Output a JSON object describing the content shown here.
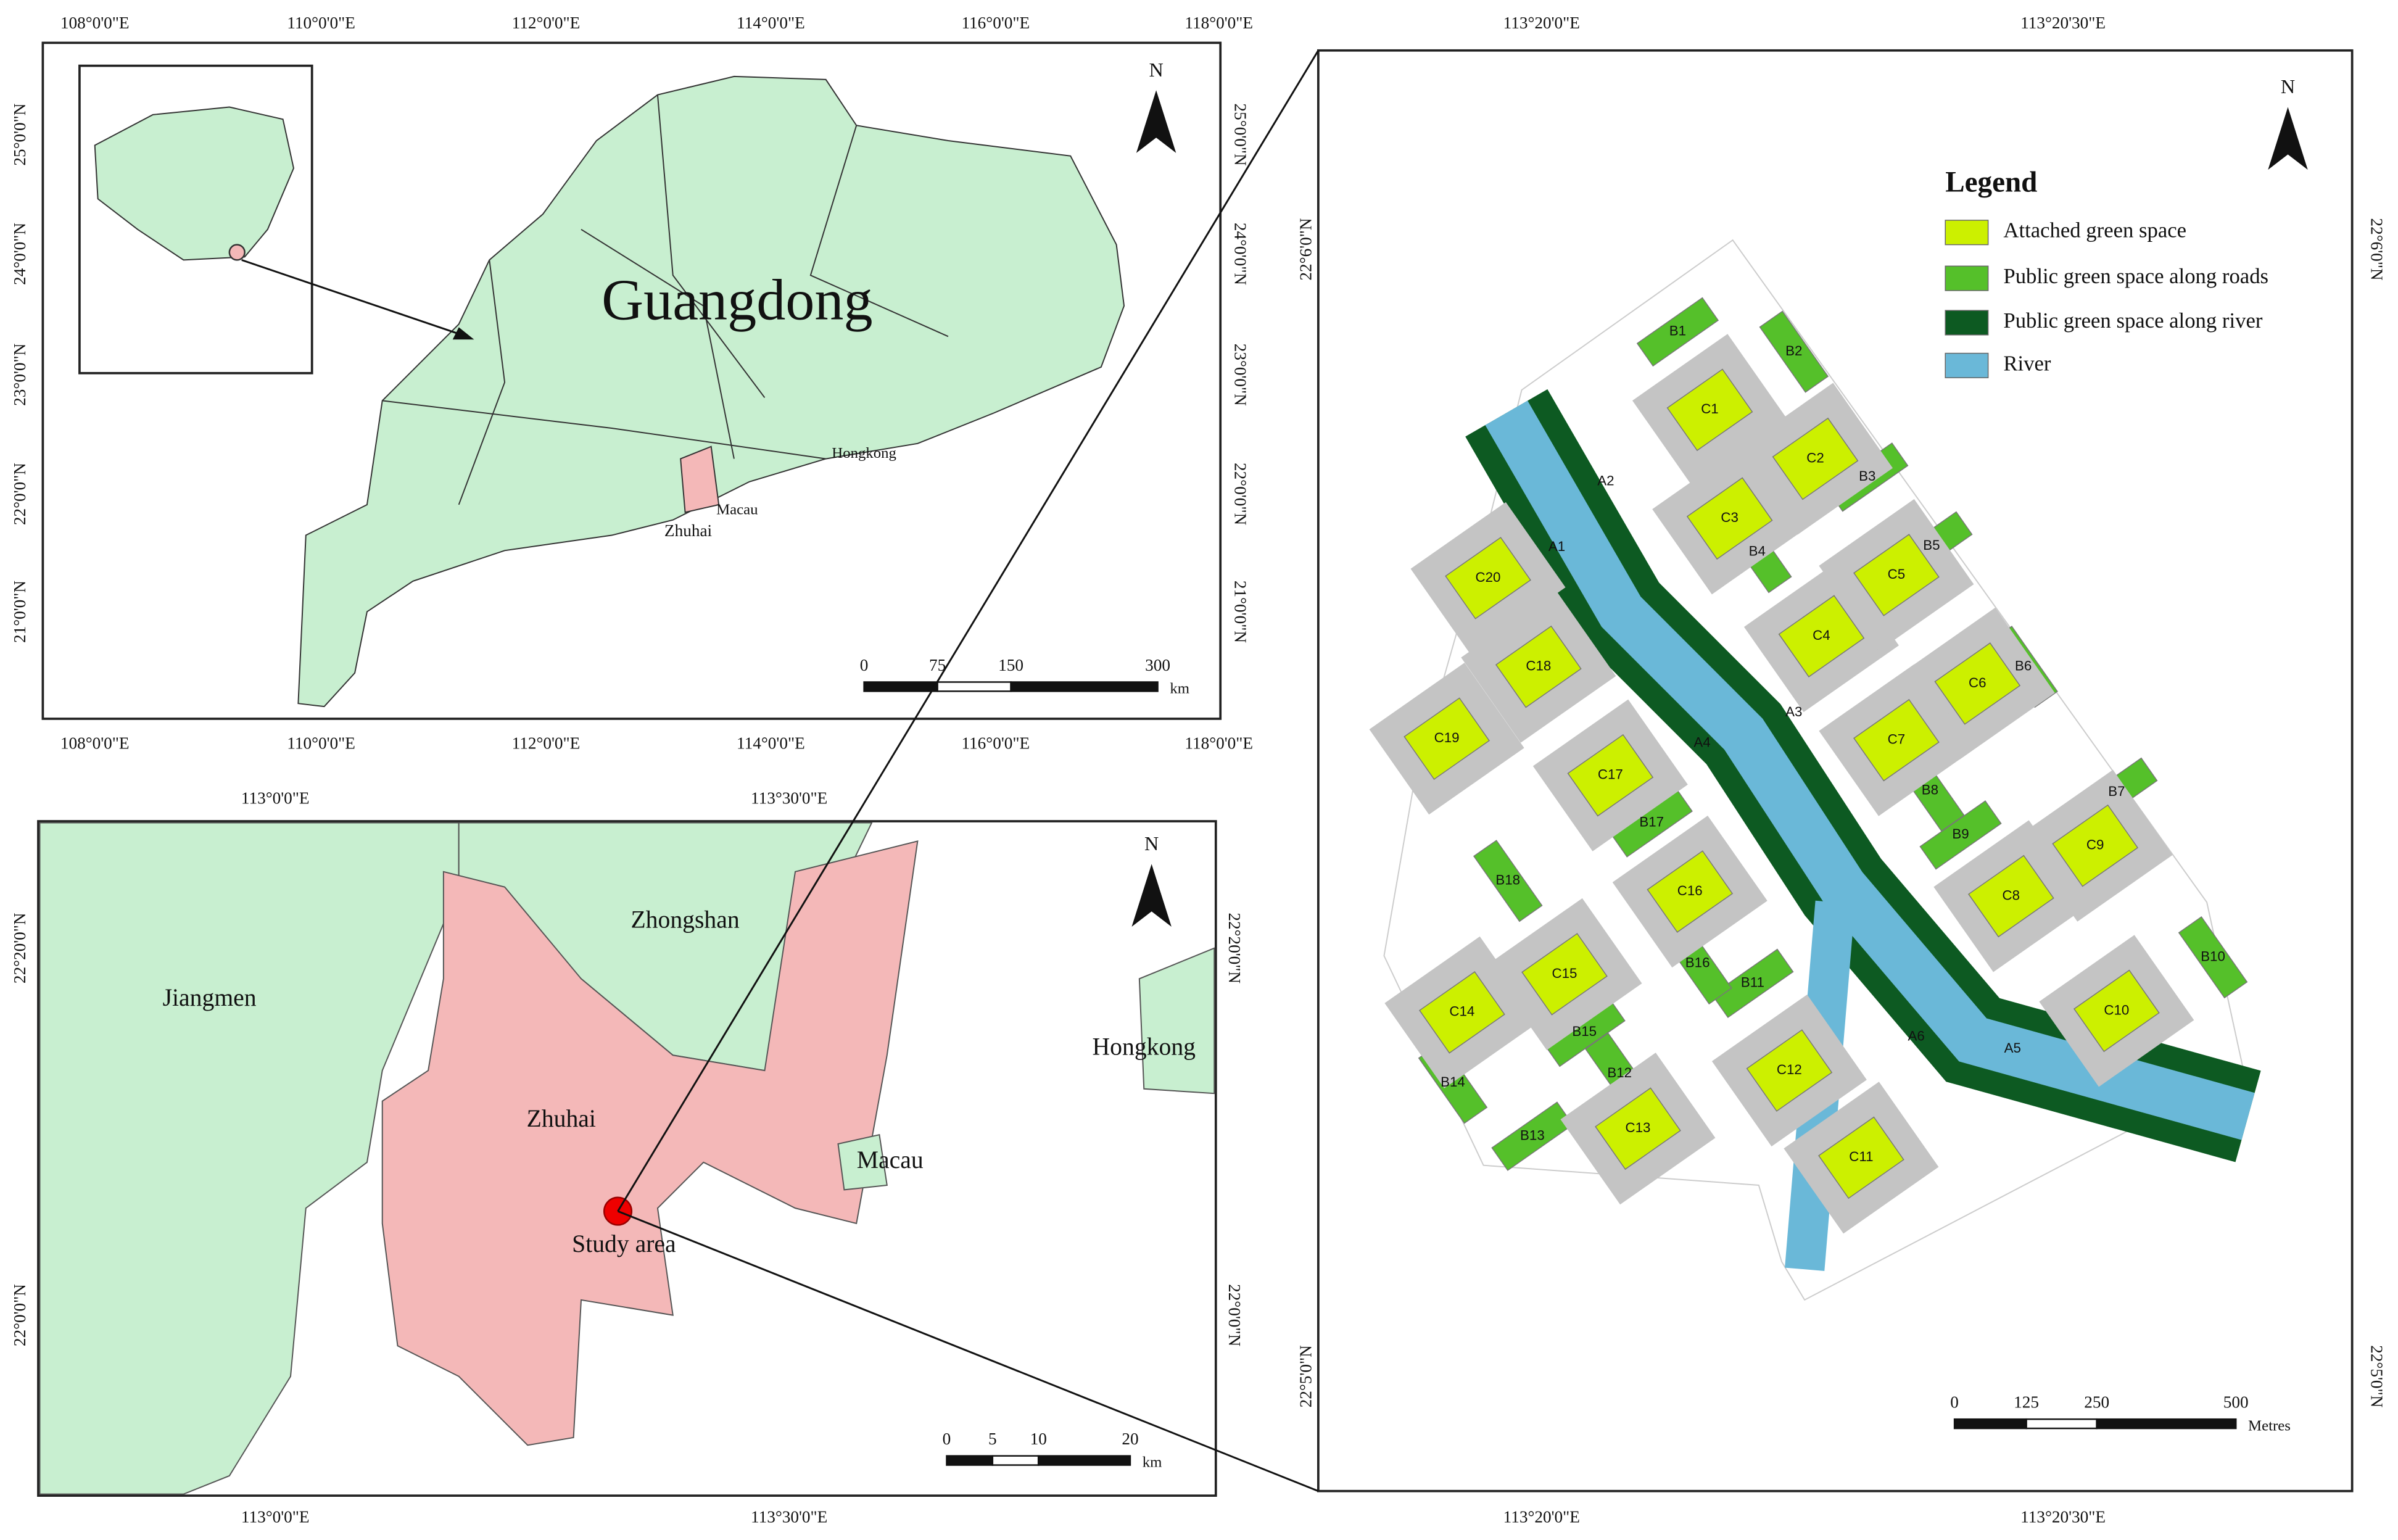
{
  "guangdong_map": {
    "lon_labels": [
      "108°0'0\"E",
      "110°0'0\"E",
      "112°0'0\"E",
      "114°0'0\"E",
      "116°0'0\"E",
      "118°0'0\"E"
    ],
    "lat_labels": [
      "25°0'0\"N",
      "24°0'0\"N",
      "23°0'0\"N",
      "22°0'0\"N",
      "21°0'0\"N"
    ],
    "title": "Guangdong",
    "places": [
      "Hongkong",
      "Macau",
      "Zhuhai"
    ],
    "north": "N",
    "scale_labels": [
      "0",
      "75",
      "150",
      "300"
    ],
    "scale_unit": "km"
  },
  "zhuhai_map": {
    "lon_labels": [
      "113°0'0\"E",
      "113°30'0\"E"
    ],
    "lat_labels": [
      "22°20'0\"N",
      "22°0'0\"N"
    ],
    "places": [
      "Zhongshan",
      "Jiangmen",
      "Hongkong",
      "Zhuhai",
      "Macau",
      "Study area"
    ],
    "north": "N",
    "scale_labels": [
      "0",
      "5",
      "10",
      "20"
    ],
    "scale_unit": "km"
  },
  "study_area_map": {
    "lon_labels": [
      "113°20'0\"E",
      "113°20'30\"E"
    ],
    "lat_labels": [
      "22°6'0\"N",
      "22°5'0\"N"
    ],
    "north": "N",
    "legend": {
      "title": "Legend",
      "items": [
        "Attached green space",
        "Public green space along roads",
        "Public green space along river",
        "River"
      ]
    },
    "scale_labels": [
      "0",
      "125",
      "250",
      "500"
    ],
    "scale_unit": "Metres",
    "blocks": [
      "A1",
      "A2",
      "A3",
      "A4",
      "A5",
      "A6",
      "B1",
      "B2",
      "B3",
      "B4",
      "B5",
      "B6",
      "B7",
      "B8",
      "B9",
      "B10",
      "B11",
      "B12",
      "B13",
      "B14",
      "B15",
      "B16",
      "B17",
      "B18",
      "C1",
      "C2",
      "C3",
      "C4",
      "C5",
      "C6",
      "C7",
      "C8",
      "C9",
      "C10",
      "C11",
      "C12",
      "C13",
      "C14",
      "C15",
      "C16",
      "C17",
      "C18",
      "C19",
      "C20"
    ]
  }
}
